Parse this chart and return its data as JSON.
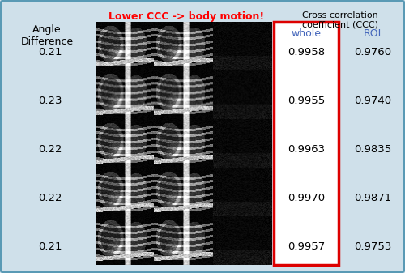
{
  "bg_color": "#cfe0ea",
  "border_color": "#5a9ab5",
  "angle_diff_label": "Angle\nDifference",
  "angle_diff_values": [
    "0.21",
    "0.23",
    "0.22",
    "0.22",
    "0.21"
  ],
  "red_text": "Lower CCC -> body motion!",
  "ccc_header": "Cross correlation\ncoefficient (CCC)",
  "col_whole": "whole",
  "col_roi": "ROI",
  "whole_values": [
    "0.9958",
    "0.9955",
    "0.9963",
    "0.9970",
    "0.9957"
  ],
  "roi_values": [
    "0.9760",
    "0.9740",
    "0.9835",
    "0.9871",
    "0.9753"
  ],
  "red_box_color": "#dd0000",
  "col_header_color": "#4466bb",
  "fig_width": 5.0,
  "fig_height": 3.37,
  "dpi": 100
}
